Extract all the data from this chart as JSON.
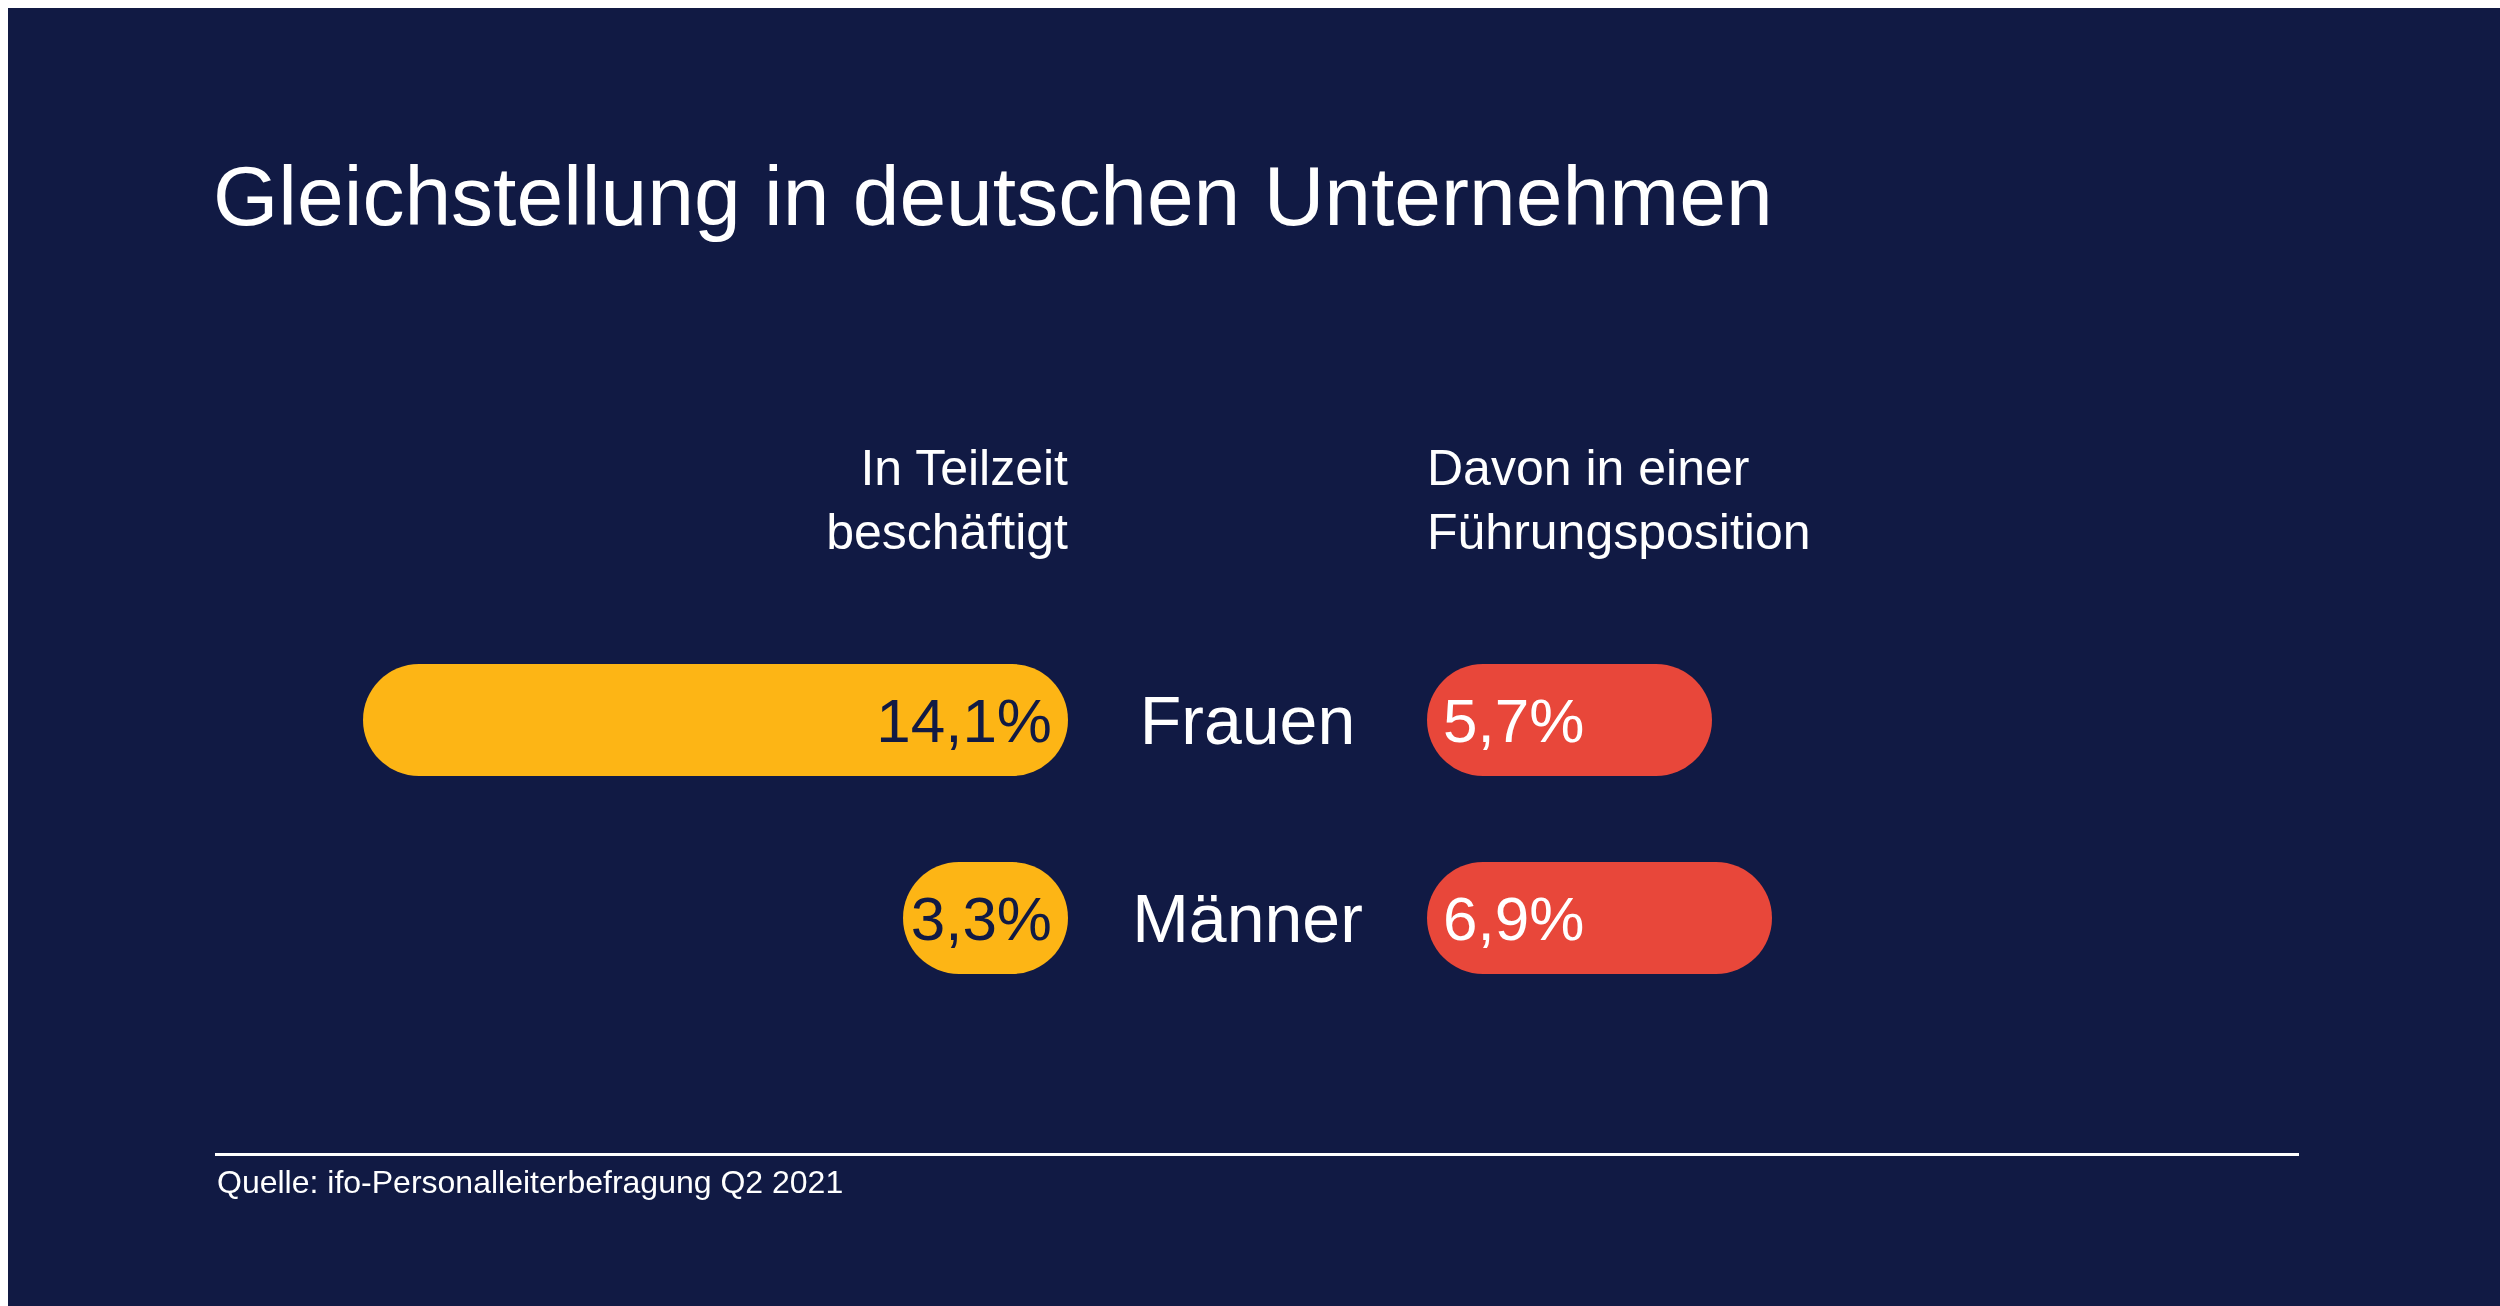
{
  "chart_data": [
    {
      "type": "bar",
      "orientation": "horizontal",
      "title": "Gleichstellung in deutschen Unternehmen",
      "categories": [
        "Frauen",
        "Männer"
      ],
      "series": [
        {
          "name": "In Teilzeit beschäftigt",
          "color": "#fdb515",
          "values": [
            14.1,
            3.3
          ],
          "value_labels": [
            "14,1%",
            "3,3%"
          ]
        }
      ]
    },
    {
      "type": "bar",
      "orientation": "horizontal",
      "categories": [
        null,
        null
      ],
      "series": [
        {
          "name": "Davon in einer Führungsposition",
          "color": "#e8473a",
          "values": [
            5.7,
            6.9
          ],
          "value_labels": [
            "5,7%",
            "6,9%"
          ]
        }
      ],
      "annotations": [
        "Quelle: ifo-Personalleiterbefragung Q2 2021"
      ]
    }
  ]
}
